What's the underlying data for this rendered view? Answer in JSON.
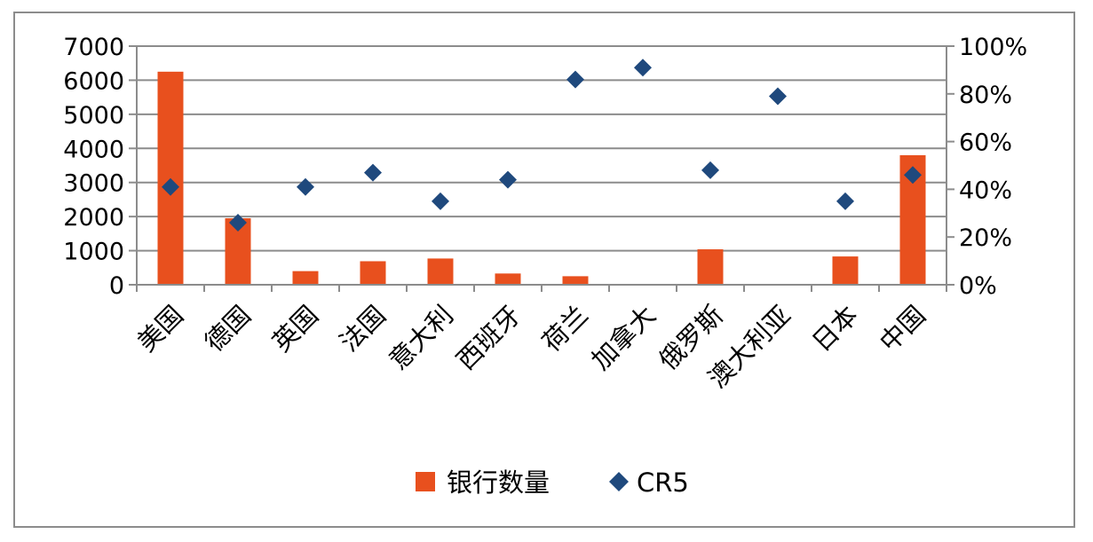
{
  "chart_data": {
    "type": "bar",
    "categories": [
      "美国",
      "德国",
      "英国",
      "法国",
      "意大利",
      "西班牙",
      "荷兰",
      "加拿大",
      "俄罗斯",
      "澳大利亚",
      "日本",
      "中国"
    ],
    "series": [
      {
        "name": "银行数量",
        "type": "bar",
        "axis": "left",
        "color": "#e8501e",
        "values": [
          6250,
          1950,
          400,
          690,
          770,
          330,
          250,
          10,
          1040,
          10,
          830,
          3800
        ]
      },
      {
        "name": "CR5",
        "type": "scatter",
        "axis": "right",
        "color": "#1f497d",
        "marker": "diamond",
        "values": [
          0.41,
          0.26,
          0.41,
          0.47,
          0.35,
          0.44,
          0.86,
          0.91,
          0.48,
          0.79,
          0.35,
          0.46
        ]
      }
    ],
    "y_left": {
      "lim": [
        0,
        7000
      ],
      "ticks": [
        "0",
        "1000",
        "2000",
        "3000",
        "4000",
        "5000",
        "6000",
        "7000"
      ]
    },
    "y_right": {
      "lim": [
        0,
        1
      ],
      "ticks": [
        "0%",
        "20%",
        "40%",
        "60%",
        "80%",
        "100%"
      ]
    },
    "grid": true,
    "legend": "bottom",
    "colors": {
      "gridline": "#8c8c8c",
      "axis": "#8c8c8c"
    }
  }
}
